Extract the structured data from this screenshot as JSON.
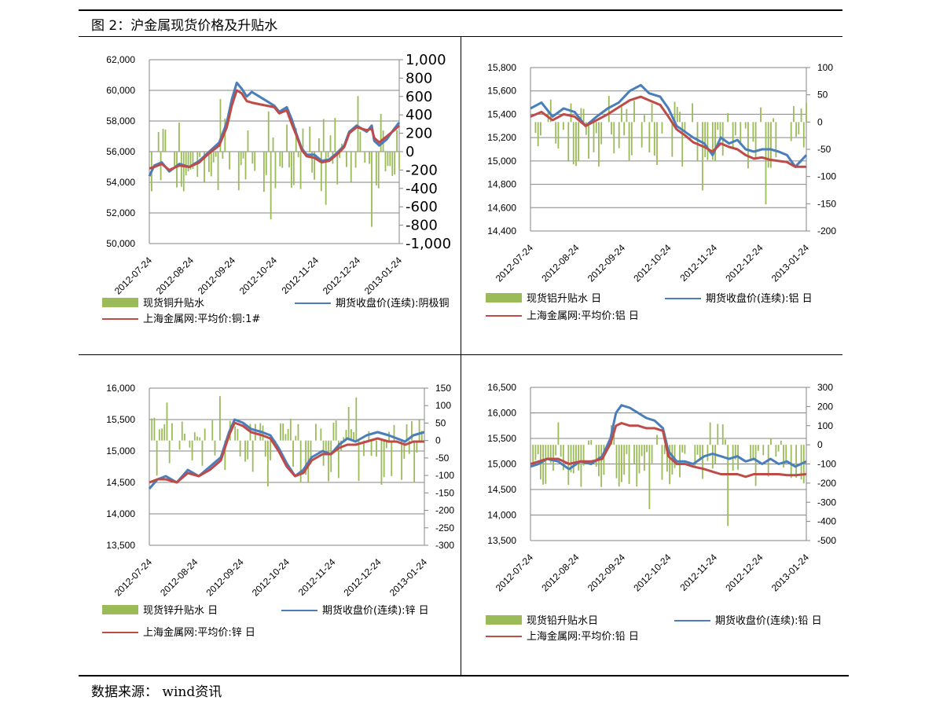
{
  "figure": {
    "title": "图 2：沪金属现货价格及升贴水",
    "source": "数据来源： wind资讯"
  },
  "colors": {
    "spread_bar": "#9bbb59",
    "futures_line": "#4a7ebb",
    "spot_line": "#be4b48",
    "grid": "#868686"
  },
  "chart_data": [
    {
      "id": "copper",
      "type": "bar+line",
      "x_ticks": [
        "2012-07-24",
        "2012-08-24",
        "2012-09-24",
        "2012-10-24",
        "2012-11-24",
        "2012-12-24",
        "2013-01-24"
      ],
      "left_axis": {
        "ylim": [
          50000,
          62000
        ],
        "ticks": [
          50000,
          52000,
          54000,
          56000,
          58000,
          60000,
          62000
        ],
        "tick_labels": [
          "50,000",
          "52,000",
          "54,000",
          "56,000",
          "58,000",
          "60,000",
          "62,000"
        ]
      },
      "right_axis": {
        "ylim": [
          -1000,
          1000
        ],
        "ticks": [
          -1000,
          -800,
          -600,
          -400,
          -200,
          0,
          200,
          400,
          600,
          800,
          1000
        ],
        "tick_labels": [
          "-1,000",
          "-800",
          "-600",
          "-400",
          "-200",
          "0",
          "200",
          "400",
          "600",
          "800",
          "1,000"
        ]
      },
      "legend": [
        "现货铜升贴水",
        "期货收盘价(连续):阴极铜",
        "上海金属网:平均价:铜:1#"
      ],
      "futures": [
        [
          0,
          54400
        ],
        [
          0.02,
          55100
        ],
        [
          0.05,
          55300
        ],
        [
          0.08,
          54700
        ],
        [
          0.12,
          55200
        ],
        [
          0.16,
          55000
        ],
        [
          0.2,
          55400
        ],
        [
          0.24,
          56000
        ],
        [
          0.28,
          56600
        ],
        [
          0.31,
          57900
        ],
        [
          0.33,
          59400
        ],
        [
          0.35,
          60500
        ],
        [
          0.37,
          60100
        ],
        [
          0.39,
          59600
        ],
        [
          0.41,
          59900
        ],
        [
          0.44,
          59600
        ],
        [
          0.47,
          59300
        ],
        [
          0.5,
          59000
        ],
        [
          0.52,
          58600
        ],
        [
          0.55,
          58900
        ],
        [
          0.57,
          58100
        ],
        [
          0.59,
          57100
        ],
        [
          0.61,
          56200
        ],
        [
          0.63,
          55800
        ],
        [
          0.66,
          55800
        ],
        [
          0.69,
          55400
        ],
        [
          0.72,
          55500
        ],
        [
          0.75,
          55900
        ],
        [
          0.78,
          56400
        ],
        [
          0.8,
          57300
        ],
        [
          0.83,
          57700
        ],
        [
          0.85,
          57500
        ],
        [
          0.87,
          57300
        ],
        [
          0.89,
          57700
        ],
        [
          0.9,
          56700
        ],
        [
          0.92,
          56400
        ],
        [
          0.95,
          56800
        ],
        [
          0.98,
          57500
        ],
        [
          1.0,
          57900
        ]
      ],
      "spot": [
        [
          0,
          54900
        ],
        [
          0.02,
          55000
        ],
        [
          0.05,
          55200
        ],
        [
          0.08,
          54800
        ],
        [
          0.12,
          55100
        ],
        [
          0.16,
          55000
        ],
        [
          0.2,
          55300
        ],
        [
          0.24,
          55900
        ],
        [
          0.28,
          56400
        ],
        [
          0.31,
          57600
        ],
        [
          0.33,
          59000
        ],
        [
          0.35,
          60000
        ],
        [
          0.37,
          59800
        ],
        [
          0.39,
          59300
        ],
        [
          0.41,
          59200
        ],
        [
          0.44,
          59100
        ],
        [
          0.47,
          59000
        ],
        [
          0.5,
          58900
        ],
        [
          0.52,
          58500
        ],
        [
          0.55,
          58700
        ],
        [
          0.57,
          57800
        ],
        [
          0.59,
          57000
        ],
        [
          0.61,
          56100
        ],
        [
          0.63,
          55700
        ],
        [
          0.66,
          55600
        ],
        [
          0.69,
          55300
        ],
        [
          0.72,
          55400
        ],
        [
          0.75,
          55800
        ],
        [
          0.78,
          56300
        ],
        [
          0.8,
          57200
        ],
        [
          0.83,
          57600
        ],
        [
          0.85,
          57500
        ],
        [
          0.87,
          57400
        ],
        [
          0.89,
          57500
        ],
        [
          0.9,
          56900
        ],
        [
          0.92,
          56600
        ],
        [
          0.95,
          57000
        ],
        [
          0.98,
          57400
        ],
        [
          1.0,
          57700
        ]
      ]
    },
    {
      "id": "aluminum",
      "type": "bar+line",
      "x_ticks": [
        "2012-07-24",
        "2012-08-24",
        "2012-09-24",
        "2012-10-24",
        "2012-11-24",
        "2012-12-24",
        "2013-01-24"
      ],
      "left_axis": {
        "ylim": [
          14400,
          15800
        ],
        "ticks": [
          14400,
          14600,
          14800,
          15000,
          15200,
          15400,
          15600,
          15800
        ],
        "tick_labels": [
          "14,400",
          "14,600",
          "14,800",
          "15,000",
          "15,200",
          "15,400",
          "15,600",
          "15,800"
        ]
      },
      "right_axis": {
        "ylim": [
          -200,
          100
        ],
        "ticks": [
          -200,
          -150,
          -100,
          -50,
          0,
          50,
          100
        ],
        "tick_labels": [
          "-200",
          "-150",
          "-100",
          "-50",
          "0",
          "50",
          "100"
        ]
      },
      "legend": [
        "现货铝升贴水 日",
        "期货收盘价(连续):铝 日",
        "上海金属网:平均价:铝 日"
      ],
      "futures": [
        [
          0,
          15450
        ],
        [
          0.04,
          15500
        ],
        [
          0.08,
          15380
        ],
        [
          0.12,
          15450
        ],
        [
          0.16,
          15420
        ],
        [
          0.2,
          15300
        ],
        [
          0.24,
          15380
        ],
        [
          0.28,
          15450
        ],
        [
          0.32,
          15500
        ],
        [
          0.36,
          15600
        ],
        [
          0.4,
          15650
        ],
        [
          0.43,
          15580
        ],
        [
          0.47,
          15550
        ],
        [
          0.5,
          15450
        ],
        [
          0.53,
          15300
        ],
        [
          0.56,
          15250
        ],
        [
          0.59,
          15200
        ],
        [
          0.63,
          15150
        ],
        [
          0.66,
          15050
        ],
        [
          0.69,
          15200
        ],
        [
          0.72,
          15150
        ],
        [
          0.75,
          15180
        ],
        [
          0.78,
          15100
        ],
        [
          0.81,
          15080
        ],
        [
          0.84,
          15100
        ],
        [
          0.87,
          15100
        ],
        [
          0.9,
          15080
        ],
        [
          0.93,
          15050
        ],
        [
          0.96,
          14950
        ],
        [
          1.0,
          15050
        ]
      ],
      "spot": [
        [
          0,
          15380
        ],
        [
          0.04,
          15420
        ],
        [
          0.08,
          15350
        ],
        [
          0.12,
          15400
        ],
        [
          0.16,
          15380
        ],
        [
          0.2,
          15300
        ],
        [
          0.24,
          15350
        ],
        [
          0.28,
          15400
        ],
        [
          0.32,
          15460
        ],
        [
          0.36,
          15520
        ],
        [
          0.4,
          15550
        ],
        [
          0.43,
          15520
        ],
        [
          0.47,
          15480
        ],
        [
          0.5,
          15380
        ],
        [
          0.53,
          15270
        ],
        [
          0.56,
          15220
        ],
        [
          0.59,
          15160
        ],
        [
          0.63,
          15120
        ],
        [
          0.66,
          15080
        ],
        [
          0.69,
          15150
        ],
        [
          0.72,
          15120
        ],
        [
          0.75,
          15100
        ],
        [
          0.78,
          15050
        ],
        [
          0.81,
          15020
        ],
        [
          0.84,
          15030
        ],
        [
          0.87,
          15010
        ],
        [
          0.9,
          15000
        ],
        [
          0.93,
          14990
        ],
        [
          0.96,
          14950
        ],
        [
          1.0,
          14950
        ]
      ]
    },
    {
      "id": "zinc",
      "type": "bar+line",
      "x_ticks": [
        "2012-07-24",
        "2012-08-24",
        "2012-09-24",
        "2012-10-24",
        "2012-11-24",
        "2012-12-24",
        "2013-01-24"
      ],
      "left_axis": {
        "ylim": [
          13500,
          16000
        ],
        "ticks": [
          13500,
          14000,
          14500,
          15000,
          15500,
          16000
        ],
        "tick_labels": [
          "13,500",
          "14,000",
          "14,500",
          "15,000",
          "15,500",
          "16,000"
        ]
      },
      "right_axis": {
        "ylim": [
          -300,
          150
        ],
        "ticks": [
          -300,
          -250,
          -200,
          -150,
          -100,
          -50,
          0,
          50,
          100,
          150
        ],
        "tick_labels": [
          "-300",
          "-250",
          "-200",
          "-150",
          "-100",
          "-50",
          "0",
          "50",
          "100",
          "150"
        ]
      },
      "legend": [
        "现货锌升贴水 日",
        "期货收盘价(连续):锌 日",
        "上海金属网:平均价:锌 日"
      ],
      "futures": [
        [
          0,
          14400
        ],
        [
          0.03,
          14550
        ],
        [
          0.06,
          14600
        ],
        [
          0.1,
          14500
        ],
        [
          0.14,
          14700
        ],
        [
          0.18,
          14600
        ],
        [
          0.22,
          14750
        ],
        [
          0.26,
          14900
        ],
        [
          0.29,
          15300
        ],
        [
          0.31,
          15500
        ],
        [
          0.34,
          15450
        ],
        [
          0.37,
          15350
        ],
        [
          0.41,
          15300
        ],
        [
          0.44,
          15250
        ],
        [
          0.47,
          15050
        ],
        [
          0.5,
          14800
        ],
        [
          0.53,
          14600
        ],
        [
          0.56,
          14700
        ],
        [
          0.59,
          14900
        ],
        [
          0.63,
          15000
        ],
        [
          0.66,
          14950
        ],
        [
          0.69,
          15100
        ],
        [
          0.72,
          15200
        ],
        [
          0.75,
          15150
        ],
        [
          0.79,
          15250
        ],
        [
          0.83,
          15300
        ],
        [
          0.87,
          15250
        ],
        [
          0.9,
          15200
        ],
        [
          0.93,
          15150
        ],
        [
          0.96,
          15250
        ],
        [
          1.0,
          15300
        ]
      ],
      "spot": [
        [
          0,
          14500
        ],
        [
          0.03,
          14550
        ],
        [
          0.06,
          14550
        ],
        [
          0.1,
          14500
        ],
        [
          0.14,
          14650
        ],
        [
          0.18,
          14600
        ],
        [
          0.22,
          14700
        ],
        [
          0.26,
          14850
        ],
        [
          0.29,
          15250
        ],
        [
          0.31,
          15450
        ],
        [
          0.34,
          15400
        ],
        [
          0.37,
          15300
        ],
        [
          0.41,
          15250
        ],
        [
          0.44,
          15200
        ],
        [
          0.47,
          15000
        ],
        [
          0.5,
          14750
        ],
        [
          0.53,
          14600
        ],
        [
          0.56,
          14650
        ],
        [
          0.59,
          14850
        ],
        [
          0.63,
          14950
        ],
        [
          0.66,
          14950
        ],
        [
          0.69,
          15050
        ],
        [
          0.72,
          15100
        ],
        [
          0.75,
          15100
        ],
        [
          0.79,
          15150
        ],
        [
          0.83,
          15200
        ],
        [
          0.87,
          15150
        ],
        [
          0.9,
          15150
        ],
        [
          0.93,
          15100
        ],
        [
          0.96,
          15150
        ],
        [
          1.0,
          15150
        ]
      ]
    },
    {
      "id": "lead",
      "type": "bar+line",
      "x_ticks": [
        "2012-07-24",
        "2012-08-24",
        "2012-09-24",
        "2012-10-24",
        "2012-11-24",
        "2012-12-24",
        "2013-01-24"
      ],
      "left_axis": {
        "ylim": [
          13500,
          16500
        ],
        "ticks": [
          13500,
          14000,
          14500,
          15000,
          15500,
          16000,
          16500
        ],
        "tick_labels": [
          "13,500",
          "14,000",
          "14,500",
          "15,000",
          "15,500",
          "16,000",
          "16,500"
        ]
      },
      "right_axis": {
        "ylim": [
          -500,
          300
        ],
        "ticks": [
          -500,
          -400,
          -300,
          -200,
          -100,
          0,
          100,
          200,
          300
        ],
        "tick_labels": [
          "-500",
          "-400",
          "-300",
          "-200",
          "-100",
          "0",
          "100",
          "200",
          "300"
        ]
      },
      "legend": [
        "现货铅升贴水日",
        "期货收盘价(连续):铅 日",
        "上海金属网:平均价:铅 日"
      ],
      "futures": [
        [
          0,
          14950
        ],
        [
          0.03,
          15000
        ],
        [
          0.06,
          15100
        ],
        [
          0.1,
          15050
        ],
        [
          0.14,
          14900
        ],
        [
          0.18,
          15050
        ],
        [
          0.22,
          15000
        ],
        [
          0.26,
          15150
        ],
        [
          0.29,
          15500
        ],
        [
          0.31,
          16000
        ],
        [
          0.33,
          16150
        ],
        [
          0.36,
          16100
        ],
        [
          0.39,
          16000
        ],
        [
          0.42,
          15900
        ],
        [
          0.45,
          15850
        ],
        [
          0.48,
          15700
        ],
        [
          0.5,
          15250
        ],
        [
          0.53,
          15050
        ],
        [
          0.56,
          15050
        ],
        [
          0.59,
          15000
        ],
        [
          0.63,
          15150
        ],
        [
          0.66,
          15200
        ],
        [
          0.69,
          15150
        ],
        [
          0.72,
          15100
        ],
        [
          0.75,
          15150
        ],
        [
          0.78,
          15050
        ],
        [
          0.81,
          15100
        ],
        [
          0.84,
          15000
        ],
        [
          0.87,
          15100
        ],
        [
          0.9,
          15000
        ],
        [
          0.93,
          15050
        ],
        [
          0.96,
          14950
        ],
        [
          1.0,
          15050
        ]
      ],
      "spot": [
        [
          0,
          15000
        ],
        [
          0.03,
          15050
        ],
        [
          0.06,
          15100
        ],
        [
          0.1,
          15100
        ],
        [
          0.14,
          15000
        ],
        [
          0.18,
          15050
        ],
        [
          0.22,
          15050
        ],
        [
          0.26,
          15100
        ],
        [
          0.29,
          15400
        ],
        [
          0.31,
          15750
        ],
        [
          0.33,
          15800
        ],
        [
          0.36,
          15750
        ],
        [
          0.39,
          15750
        ],
        [
          0.42,
          15700
        ],
        [
          0.45,
          15700
        ],
        [
          0.48,
          15650
        ],
        [
          0.5,
          15150
        ],
        [
          0.53,
          15000
        ],
        [
          0.56,
          15000
        ],
        [
          0.59,
          14950
        ],
        [
          0.63,
          14900
        ],
        [
          0.66,
          14850
        ],
        [
          0.69,
          14800
        ],
        [
          0.72,
          14800
        ],
        [
          0.75,
          14800
        ],
        [
          0.78,
          14750
        ],
        [
          0.81,
          14800
        ],
        [
          0.84,
          14800
        ],
        [
          0.87,
          14800
        ],
        [
          0.9,
          14800
        ],
        [
          0.93,
          14780
        ],
        [
          0.96,
          14780
        ],
        [
          1.0,
          14800
        ]
      ]
    }
  ]
}
